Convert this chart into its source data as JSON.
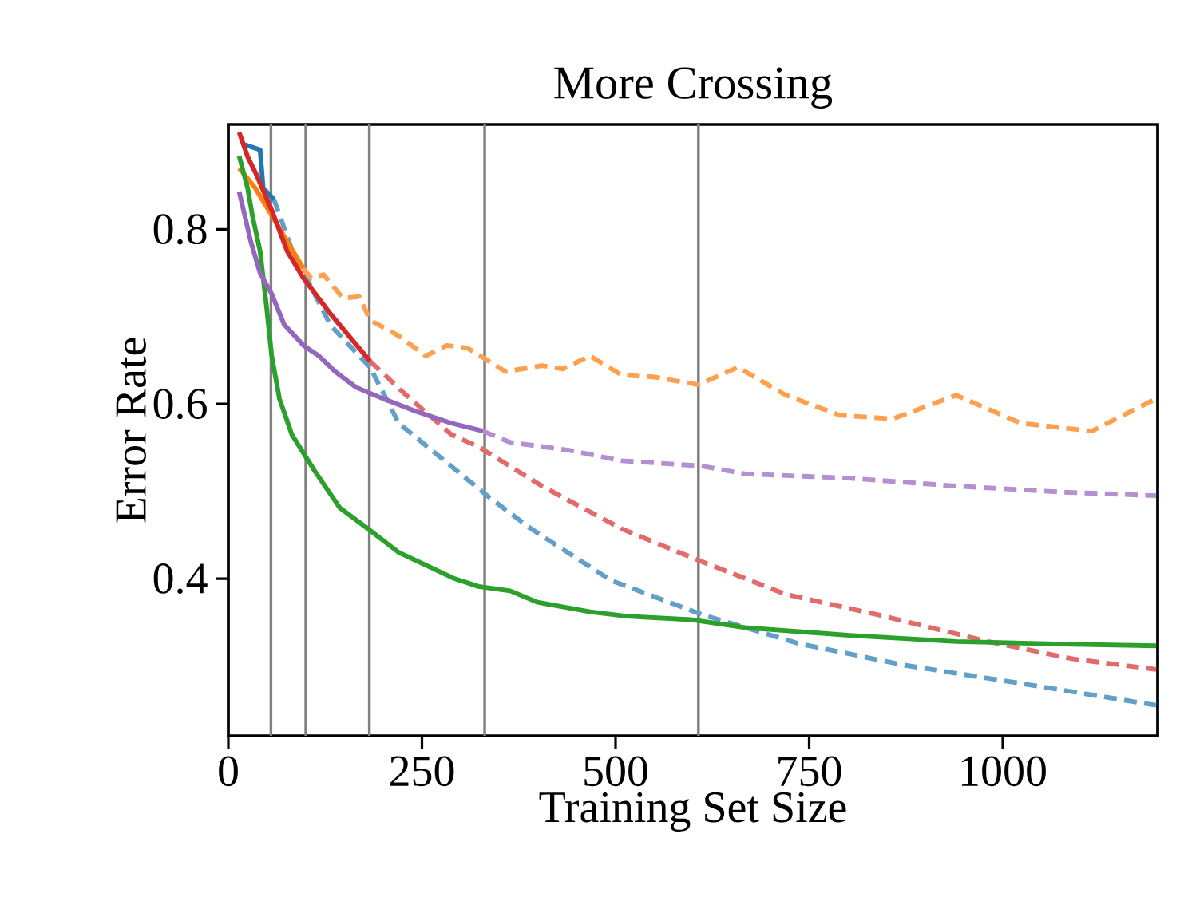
{
  "chart_data": {
    "type": "line",
    "title": "More Crossing",
    "xlabel": "Training Set Size",
    "ylabel": "Error Rate",
    "xlim": [
      0,
      1200
    ],
    "ylim": [
      0.22,
      0.92
    ],
    "xticks": [
      0,
      250,
      500,
      750,
      1000
    ],
    "yticks": [
      0.4,
      0.6,
      0.8
    ],
    "ref_lines": [
      {
        "axis": "x",
        "value": 55,
        "color": "#808080"
      },
      {
        "axis": "x",
        "value": 100,
        "color": "#808080"
      },
      {
        "axis": "x",
        "value": 182,
        "color": "#808080"
      },
      {
        "axis": "x",
        "value": 331,
        "color": "#808080"
      },
      {
        "axis": "x",
        "value": 607,
        "color": "#808080"
      }
    ],
    "series": [
      {
        "color": "#62a0ca",
        "line_style": "dashed",
        "x": [
          59,
          82,
          132,
          183,
          220,
          337,
          391,
          494,
          611,
          735,
          872,
          1009,
          1198
        ],
        "values": [
          0.834,
          0.777,
          0.69,
          0.642,
          0.578,
          0.493,
          0.457,
          0.398,
          0.359,
          0.326,
          0.301,
          0.282,
          0.255
        ]
      },
      {
        "color": "#ffa04f",
        "line_style": "dashed",
        "x": [
          97,
          107,
          123,
          148,
          169,
          183,
          220,
          255,
          282,
          309,
          358,
          405,
          432,
          467,
          508,
          549,
          607,
          658,
          720,
          790,
          858,
          940,
          1023,
          1115,
          1198
        ],
        "values": [
          0.755,
          0.744,
          0.748,
          0.721,
          0.723,
          0.696,
          0.678,
          0.655,
          0.667,
          0.664,
          0.637,
          0.644,
          0.64,
          0.655,
          0.633,
          0.631,
          0.622,
          0.642,
          0.61,
          0.587,
          0.583,
          0.61,
          0.578,
          0.569,
          0.606
        ]
      },
      {
        "color": "#e36a6a",
        "line_style": "dashed",
        "x": [
          183,
          226,
          288,
          323,
          405,
          508,
          607,
          720,
          837,
          981,
          1091,
          1198
        ],
        "values": [
          0.649,
          0.613,
          0.565,
          0.551,
          0.506,
          0.457,
          0.421,
          0.382,
          0.359,
          0.328,
          0.308,
          0.296
        ]
      },
      {
        "color": "#b490d0",
        "line_style": "dashed",
        "x": [
          329,
          350,
          364,
          440,
          508,
          611,
          667,
          802,
          940,
          1078,
          1198
        ],
        "values": [
          0.569,
          0.561,
          0.556,
          0.547,
          0.535,
          0.529,
          0.52,
          0.515,
          0.506,
          0.499,
          0.495
        ]
      },
      {
        "color": "#1f77b4",
        "line_style": "solid",
        "x": [
          21,
          41,
          45,
          59
        ],
        "values": [
          0.897,
          0.891,
          0.847,
          0.834
        ]
      },
      {
        "color": "#ff7f0e",
        "line_style": "solid",
        "x": [
          14,
          35,
          56,
          76,
          97
        ],
        "values": [
          0.87,
          0.847,
          0.816,
          0.786,
          0.755
        ]
      },
      {
        "color": "#2ca02c",
        "line_style": "solid",
        "x": [
          14,
          25,
          31,
          41,
          49,
          56,
          66,
          82,
          111,
          144,
          179,
          220,
          261,
          292,
          323,
          364,
          399,
          467,
          514,
          597,
          667,
          802,
          940,
          1078,
          1198
        ],
        "values": [
          0.884,
          0.847,
          0.816,
          0.775,
          0.714,
          0.655,
          0.606,
          0.565,
          0.524,
          0.481,
          0.458,
          0.43,
          0.413,
          0.4,
          0.391,
          0.386,
          0.373,
          0.362,
          0.357,
          0.353,
          0.344,
          0.335,
          0.328,
          0.325,
          0.323
        ]
      },
      {
        "color": "#d62728",
        "line_style": "solid",
        "x": [
          14,
          25,
          35,
          56,
          76,
          97,
          132,
          183
        ],
        "values": [
          0.911,
          0.883,
          0.865,
          0.822,
          0.775,
          0.744,
          0.703,
          0.649
        ]
      },
      {
        "color": "#9467bd",
        "line_style": "solid",
        "x": [
          14,
          29,
          41,
          56,
          72,
          97,
          117,
          138,
          165,
          200,
          241,
          288,
          329
        ],
        "values": [
          0.843,
          0.786,
          0.75,
          0.726,
          0.691,
          0.667,
          0.655,
          0.637,
          0.619,
          0.606,
          0.592,
          0.578,
          0.569
        ]
      }
    ]
  }
}
